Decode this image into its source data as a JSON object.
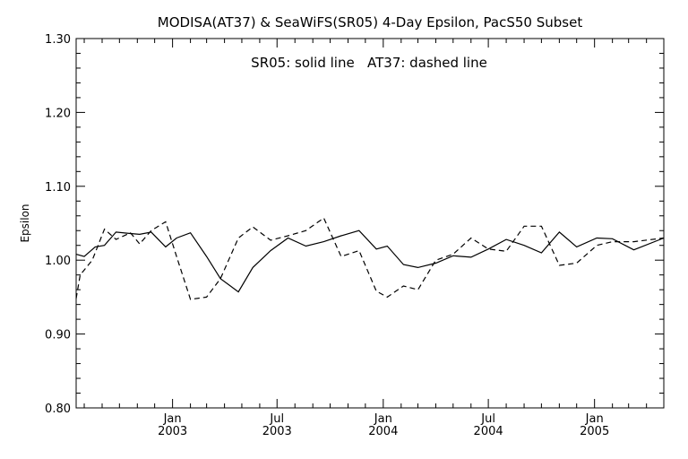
{
  "chart_data": {
    "type": "line",
    "title": "MODISA(AT37) & SeaWiFS(SR05) 4-Day Epsilon, PacS50 Subset",
    "annotation": "SR05: solid line   AT37: dashed line",
    "xlabel": "",
    "ylabel": "Epsilon",
    "xlim": [
      "2002-07-18",
      "2005-05-01"
    ],
    "ylim": [
      0.8,
      1.3
    ],
    "grid": false,
    "legend": "none",
    "yticks": [
      0.8,
      0.9,
      1.0,
      1.1,
      1.2,
      1.3
    ],
    "yticklabels": [
      "0.80",
      "0.90",
      "1.00",
      "1.10",
      "1.20",
      "1.30"
    ],
    "xticks": [
      {
        "date": "2003-01-01",
        "line1": "Jan",
        "line2": "2003"
      },
      {
        "date": "2003-07-01",
        "line1": "Jul",
        "line2": "2003"
      },
      {
        "date": "2004-01-01",
        "line1": "Jan",
        "line2": "2004"
      },
      {
        "date": "2004-07-01",
        "line1": "Jul",
        "line2": "2004"
      },
      {
        "date": "2005-01-01",
        "line1": "Jan",
        "line2": "2005"
      }
    ],
    "minor_ticks": [
      "2002-08-01",
      "2002-09-01",
      "2002-10-01",
      "2002-11-01",
      "2002-12-01",
      "2003-02-01",
      "2003-03-01",
      "2003-04-01",
      "2003-05-01",
      "2003-06-01",
      "2003-08-01",
      "2003-09-01",
      "2003-10-01",
      "2003-11-01",
      "2003-12-01",
      "2004-02-01",
      "2004-03-01",
      "2004-04-01",
      "2004-05-01",
      "2004-06-01",
      "2004-08-01",
      "2004-09-01",
      "2004-10-01",
      "2004-11-01",
      "2004-12-01",
      "2005-02-01",
      "2005-03-01",
      "2005-04-01"
    ],
    "series": [
      {
        "name": "SR05",
        "style": "solid",
        "color": "#000000",
        "x": [
          "2002-07-18",
          "2002-08-01",
          "2002-08-20",
          "2002-09-05",
          "2002-09-25",
          "2002-10-20",
          "2002-11-05",
          "2002-11-25",
          "2002-12-20",
          "2003-01-08",
          "2003-02-01",
          "2003-03-01",
          "2003-03-25",
          "2003-04-25",
          "2003-05-20",
          "2003-06-20",
          "2003-07-20",
          "2003-08-20",
          "2003-09-20",
          "2003-10-20",
          "2003-11-20",
          "2003-12-20",
          "2004-01-08",
          "2004-02-05",
          "2004-03-01",
          "2004-04-01",
          "2004-05-01",
          "2004-06-01",
          "2004-07-01",
          "2004-08-01",
          "2004-09-01",
          "2004-10-01",
          "2004-11-01",
          "2004-12-01",
          "2005-01-05",
          "2005-02-01",
          "2005-03-10",
          "2005-05-01"
        ],
        "values": [
          1.008,
          1.005,
          1.018,
          1.02,
          1.038,
          1.036,
          1.035,
          1.038,
          1.018,
          1.03,
          1.037,
          1.005,
          0.975,
          0.957,
          0.99,
          1.013,
          1.03,
          1.019,
          1.025,
          1.033,
          1.04,
          1.015,
          1.019,
          0.994,
          0.99,
          0.996,
          1.006,
          1.004,
          1.015,
          1.028,
          1.02,
          1.01,
          1.038,
          1.018,
          1.03,
          1.029,
          1.014,
          1.03
        ]
      },
      {
        "name": "AT37",
        "style": "dashed",
        "color": "#000000",
        "x": [
          "2002-07-18",
          "2002-07-25",
          "2002-08-15",
          "2002-09-05",
          "2002-09-25",
          "2002-10-20",
          "2002-11-05",
          "2002-11-25",
          "2002-12-20",
          "2003-01-08",
          "2003-02-01",
          "2003-03-01",
          "2003-03-25",
          "2003-04-25",
          "2003-05-20",
          "2003-06-20",
          "2003-07-20",
          "2003-08-20",
          "2003-09-20",
          "2003-10-20",
          "2003-11-20",
          "2003-12-20",
          "2004-01-08",
          "2004-02-05",
          "2004-03-01",
          "2004-04-01",
          "2004-05-01",
          "2004-06-01",
          "2004-07-01",
          "2004-08-01",
          "2004-09-01",
          "2004-10-01",
          "2004-11-01",
          "2004-12-01",
          "2005-01-05",
          "2005-02-01",
          "2005-03-10",
          "2005-05-01"
        ],
        "values": [
          0.948,
          0.98,
          1.0,
          1.042,
          1.028,
          1.037,
          1.022,
          1.04,
          1.052,
          1.005,
          0.947,
          0.95,
          0.975,
          1.03,
          1.045,
          1.027,
          1.033,
          1.04,
          1.057,
          1.005,
          1.013,
          0.958,
          0.95,
          0.965,
          0.96,
          1.0,
          1.008,
          1.03,
          1.015,
          1.012,
          1.046,
          1.046,
          0.993,
          0.996,
          1.02,
          1.025,
          1.025,
          1.03
        ]
      }
    ]
  }
}
